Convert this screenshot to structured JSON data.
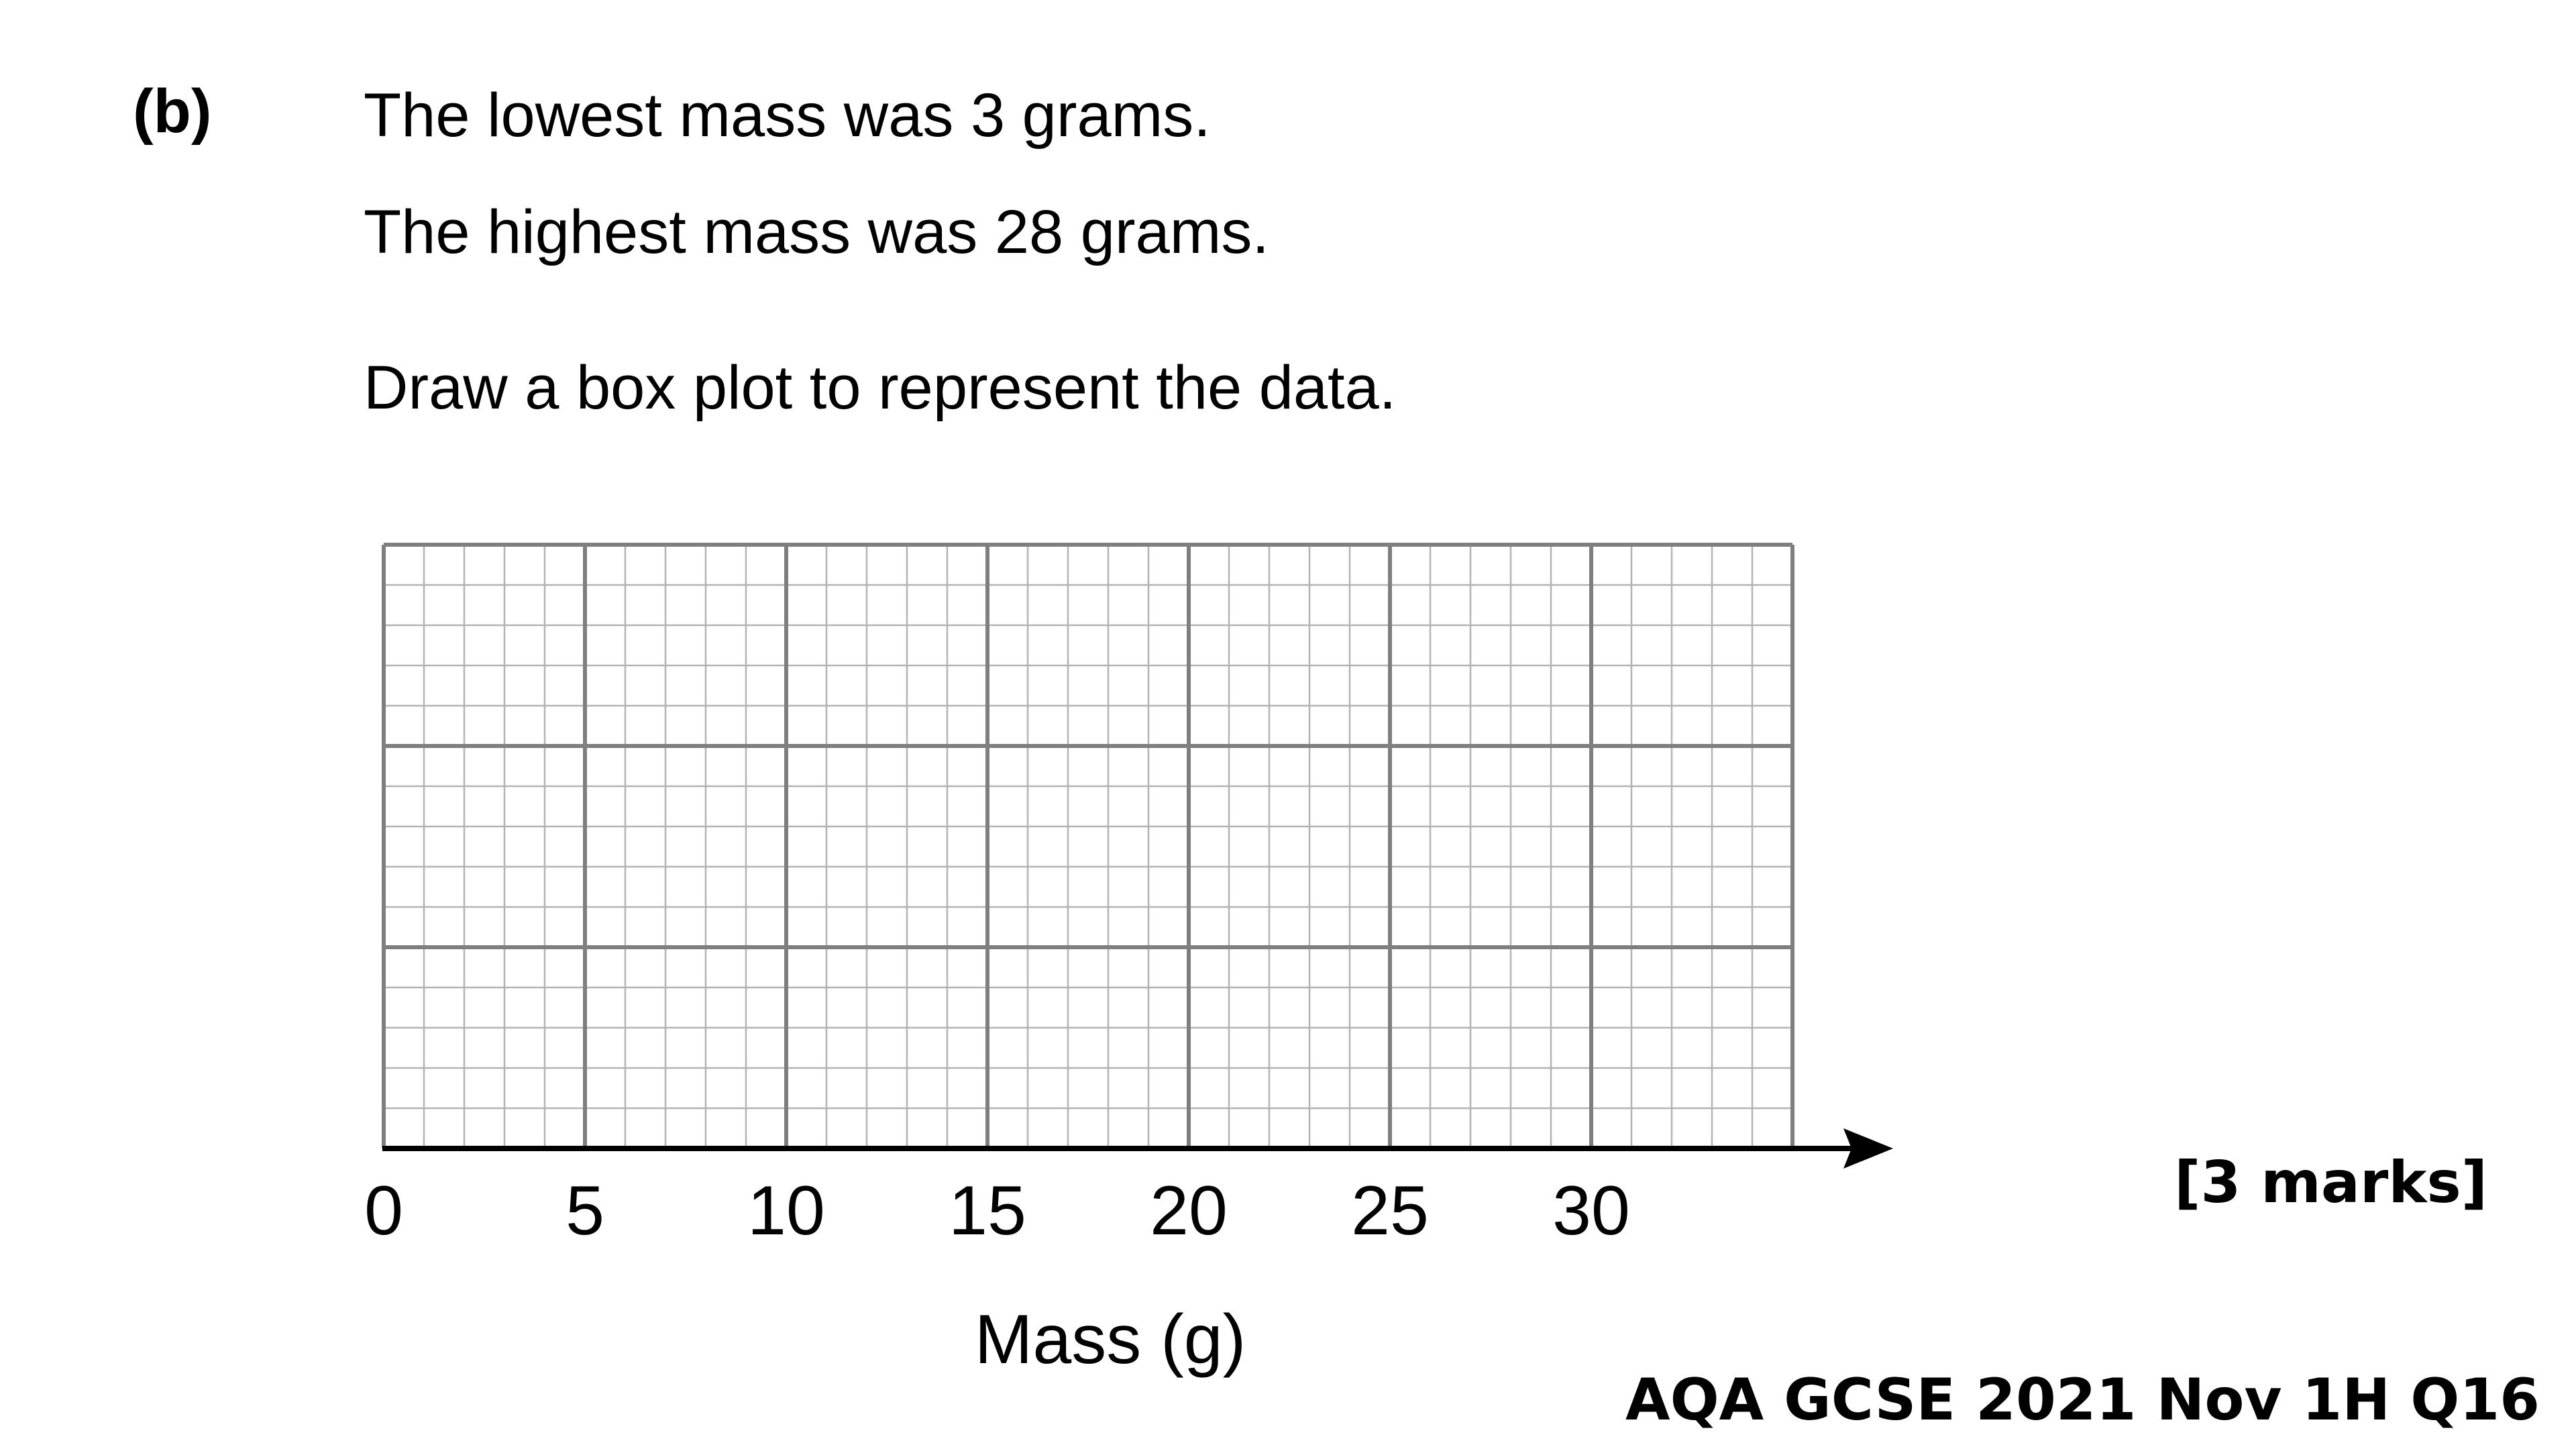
{
  "question": {
    "part_label": "(b)",
    "lines": [
      "The lowest mass was 3 grams.",
      "The highest mass was 28 grams.",
      "Draw a box plot to represent the data."
    ],
    "marks": "[3 marks]",
    "source": "AQA GCSE 2021 Nov 1H Q16"
  },
  "chart_data": {
    "type": "box",
    "xlabel": "Mass (g)",
    "ylabel": "",
    "xlim": [
      0,
      35
    ],
    "x_ticks": [
      0,
      5,
      10,
      15,
      20,
      25,
      30
    ],
    "tick_labels": [
      "0",
      "5",
      "10",
      "15",
      "20",
      "25",
      "30"
    ],
    "grid": true,
    "minor_grid_step": 1,
    "major_grid_step": 5,
    "grid_rows_major": 3,
    "grid_rows_minor_per_major": 5,
    "values": [],
    "colors": {
      "grid_minor": "#b3b3b3",
      "grid_major": "#7f7f7f",
      "axis": "#000000"
    }
  }
}
